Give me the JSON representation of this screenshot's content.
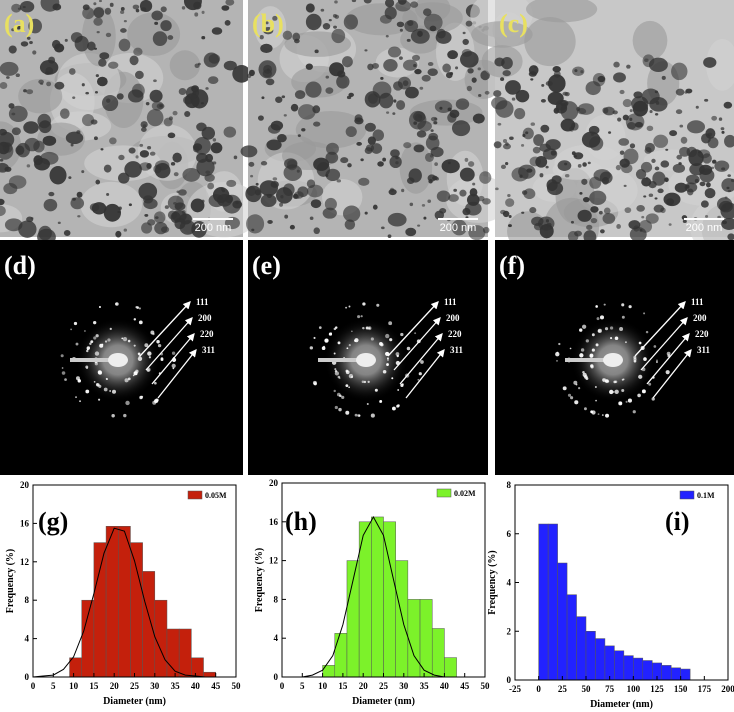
{
  "image_panels": [
    {
      "label": "(a)",
      "scale": "200 nm"
    },
    {
      "label": "(b)",
      "scale": "200 nm"
    },
    {
      "label": "(c)",
      "scale": "200 nm"
    }
  ],
  "diffraction_panels": [
    {
      "label": "(d)",
      "rings": [
        "111",
        "200",
        "220",
        "311"
      ]
    },
    {
      "label": "(e)",
      "rings": [
        "111",
        "200",
        "220",
        "311"
      ]
    },
    {
      "label": "(f)",
      "rings": [
        "111",
        "200",
        "220",
        "311"
      ]
    }
  ],
  "chart_data": [
    {
      "type": "histogram",
      "panel_label": "(g)",
      "xlabel": "Diameter (nm)",
      "ylabel": "Frequency (%)",
      "legend": "upper right",
      "bins": [
        9,
        12,
        15,
        18,
        21,
        24,
        27,
        30,
        33,
        36,
        39,
        42,
        45
      ],
      "series": [
        {
          "name": "0.05M",
          "color": "#c4200c",
          "values": [
            2,
            8,
            14,
            15.7,
            15.7,
            14,
            11,
            8,
            5,
            5,
            2,
            0.5
          ]
        }
      ],
      "fit_line": {
        "color": "#000000",
        "x": [
          0,
          2.5,
          5,
          7.5,
          10,
          12.5,
          15,
          17.5,
          20,
          22.5,
          25,
          27.5,
          30,
          32.5,
          35,
          37.5,
          40,
          42.5,
          45,
          47.5,
          50
        ],
        "values": [
          0,
          0.1,
          0.2,
          0.8,
          2.1,
          4.8,
          8.7,
          12.9,
          15.5,
          15.2,
          12.1,
          7.9,
          4.2,
          1.8,
          0.6,
          0.2,
          0.1,
          0,
          0,
          0,
          0
        ]
      },
      "xlim": [
        0,
        50
      ],
      "ylim": [
        0,
        20
      ],
      "xticks": [
        0,
        5,
        10,
        15,
        20,
        25,
        30,
        35,
        40,
        45,
        50
      ],
      "yticks": [
        0,
        4,
        8,
        12,
        16,
        20
      ]
    },
    {
      "type": "histogram",
      "panel_label": "(h)",
      "xlabel": "Diameter (nm)",
      "ylabel": "Frequency (%)",
      "legend": "upper right",
      "bins": [
        10,
        13,
        16,
        19,
        22,
        25,
        28,
        31,
        34,
        37,
        40,
        43
      ],
      "series": [
        {
          "name": "0.02M",
          "color": "#7cf22a",
          "values": [
            1.2,
            4.5,
            12,
            16,
            16.5,
            16,
            12,
            8,
            8,
            5,
            2
          ]
        }
      ],
      "fit_line": {
        "color": "#000000",
        "x": [
          0,
          2.5,
          5,
          7.5,
          10,
          12.5,
          15,
          17.5,
          20,
          22.5,
          25,
          27.5,
          30,
          32.5,
          35,
          37.5,
          40,
          42.5,
          45,
          47.5,
          50
        ],
        "values": [
          0,
          0,
          0,
          0.2,
          0.7,
          2.2,
          5.4,
          10,
          14.6,
          16.5,
          14.6,
          10,
          5.4,
          2.2,
          0.7,
          0.2,
          0,
          0,
          0,
          0,
          0
        ]
      },
      "xlim": [
        0,
        50
      ],
      "ylim": [
        0,
        20
      ],
      "xticks": [
        0,
        5,
        10,
        15,
        20,
        25,
        30,
        35,
        40,
        45,
        50
      ],
      "yticks": [
        0,
        4,
        8,
        12,
        16,
        20
      ]
    },
    {
      "type": "histogram",
      "panel_label": "(i)",
      "xlabel": "Diameter (nm)",
      "ylabel": "Frequency (%)",
      "legend": "upper right",
      "bins": [
        0,
        10,
        20,
        30,
        40,
        50,
        60,
        70,
        80,
        90,
        100,
        110,
        120,
        130,
        140,
        150,
        160
      ],
      "series": [
        {
          "name": "0.1M",
          "color": "#2222ff",
          "values": [
            6.4,
            6.4,
            4.8,
            3.5,
            2.6,
            2,
            1.7,
            1.4,
            1.2,
            1,
            0.9,
            0.8,
            0.7,
            0.6,
            0.5,
            0.45
          ]
        }
      ],
      "xlim": [
        -25,
        200
      ],
      "ylim": [
        0,
        8
      ],
      "xticks": [
        -25,
        0,
        25,
        50,
        75,
        100,
        125,
        150,
        175,
        200
      ],
      "yticks": [
        0,
        2,
        4,
        6,
        8
      ]
    }
  ]
}
